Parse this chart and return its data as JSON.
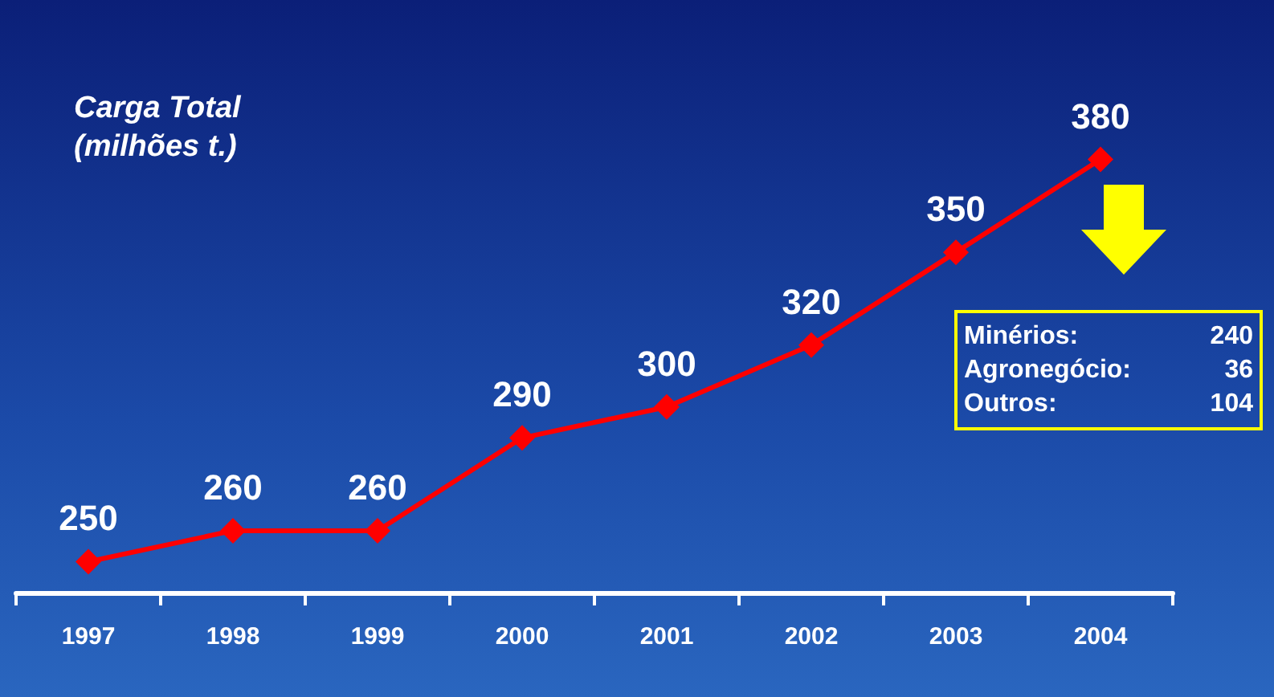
{
  "chart_data": {
    "type": "line",
    "title": "Carga Total",
    "subtitle": "(milhões t.)",
    "categories": [
      "1997",
      "1998",
      "1999",
      "2000",
      "2001",
      "2002",
      "2003",
      "2004"
    ],
    "series": [
      {
        "color": "#ff0000",
        "values": [
          250,
          260,
          260,
          290,
          300,
          320,
          350,
          380
        ]
      }
    ],
    "data_labels": true,
    "marker": "diamond",
    "line_style": "solid",
    "annotations": [
      "Minérios:",
      "240",
      "Agronegócio:",
      "36",
      "Outros:",
      "104"
    ]
  }
}
